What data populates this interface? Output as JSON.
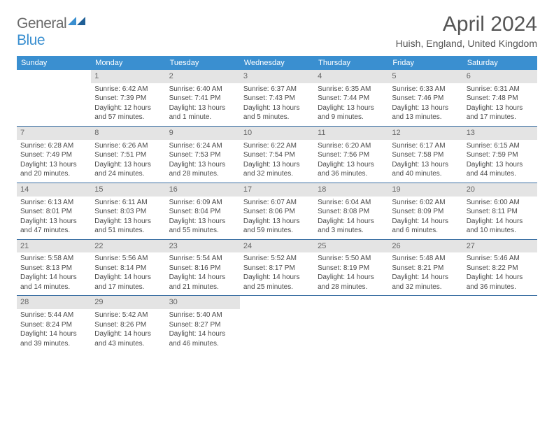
{
  "logo": {
    "general": "General",
    "blue": "Blue",
    "icon_color": "#3a8fd0"
  },
  "header": {
    "month_title": "April 2024",
    "location": "Huish, England, United Kingdom"
  },
  "colors": {
    "header_bg": "#3a8fd0",
    "header_text": "#ffffff",
    "daynum_bg": "#e4e4e4",
    "row_border": "#3a6fa3",
    "body_text": "#4a4a4a"
  },
  "days_of_week": [
    "Sunday",
    "Monday",
    "Tuesday",
    "Wednesday",
    "Thursday",
    "Friday",
    "Saturday"
  ],
  "weeks": [
    [
      {
        "empty": true
      },
      {
        "n": "1",
        "sunrise": "Sunrise: 6:42 AM",
        "sunset": "Sunset: 7:39 PM",
        "day1": "Daylight: 12 hours",
        "day2": "and 57 minutes."
      },
      {
        "n": "2",
        "sunrise": "Sunrise: 6:40 AM",
        "sunset": "Sunset: 7:41 PM",
        "day1": "Daylight: 13 hours",
        "day2": "and 1 minute."
      },
      {
        "n": "3",
        "sunrise": "Sunrise: 6:37 AM",
        "sunset": "Sunset: 7:43 PM",
        "day1": "Daylight: 13 hours",
        "day2": "and 5 minutes."
      },
      {
        "n": "4",
        "sunrise": "Sunrise: 6:35 AM",
        "sunset": "Sunset: 7:44 PM",
        "day1": "Daylight: 13 hours",
        "day2": "and 9 minutes."
      },
      {
        "n": "5",
        "sunrise": "Sunrise: 6:33 AM",
        "sunset": "Sunset: 7:46 PM",
        "day1": "Daylight: 13 hours",
        "day2": "and 13 minutes."
      },
      {
        "n": "6",
        "sunrise": "Sunrise: 6:31 AM",
        "sunset": "Sunset: 7:48 PM",
        "day1": "Daylight: 13 hours",
        "day2": "and 17 minutes."
      }
    ],
    [
      {
        "n": "7",
        "sunrise": "Sunrise: 6:28 AM",
        "sunset": "Sunset: 7:49 PM",
        "day1": "Daylight: 13 hours",
        "day2": "and 20 minutes."
      },
      {
        "n": "8",
        "sunrise": "Sunrise: 6:26 AM",
        "sunset": "Sunset: 7:51 PM",
        "day1": "Daylight: 13 hours",
        "day2": "and 24 minutes."
      },
      {
        "n": "9",
        "sunrise": "Sunrise: 6:24 AM",
        "sunset": "Sunset: 7:53 PM",
        "day1": "Daylight: 13 hours",
        "day2": "and 28 minutes."
      },
      {
        "n": "10",
        "sunrise": "Sunrise: 6:22 AM",
        "sunset": "Sunset: 7:54 PM",
        "day1": "Daylight: 13 hours",
        "day2": "and 32 minutes."
      },
      {
        "n": "11",
        "sunrise": "Sunrise: 6:20 AM",
        "sunset": "Sunset: 7:56 PM",
        "day1": "Daylight: 13 hours",
        "day2": "and 36 minutes."
      },
      {
        "n": "12",
        "sunrise": "Sunrise: 6:17 AM",
        "sunset": "Sunset: 7:58 PM",
        "day1": "Daylight: 13 hours",
        "day2": "and 40 minutes."
      },
      {
        "n": "13",
        "sunrise": "Sunrise: 6:15 AM",
        "sunset": "Sunset: 7:59 PM",
        "day1": "Daylight: 13 hours",
        "day2": "and 44 minutes."
      }
    ],
    [
      {
        "n": "14",
        "sunrise": "Sunrise: 6:13 AM",
        "sunset": "Sunset: 8:01 PM",
        "day1": "Daylight: 13 hours",
        "day2": "and 47 minutes."
      },
      {
        "n": "15",
        "sunrise": "Sunrise: 6:11 AM",
        "sunset": "Sunset: 8:03 PM",
        "day1": "Daylight: 13 hours",
        "day2": "and 51 minutes."
      },
      {
        "n": "16",
        "sunrise": "Sunrise: 6:09 AM",
        "sunset": "Sunset: 8:04 PM",
        "day1": "Daylight: 13 hours",
        "day2": "and 55 minutes."
      },
      {
        "n": "17",
        "sunrise": "Sunrise: 6:07 AM",
        "sunset": "Sunset: 8:06 PM",
        "day1": "Daylight: 13 hours",
        "day2": "and 59 minutes."
      },
      {
        "n": "18",
        "sunrise": "Sunrise: 6:04 AM",
        "sunset": "Sunset: 8:08 PM",
        "day1": "Daylight: 14 hours",
        "day2": "and 3 minutes."
      },
      {
        "n": "19",
        "sunrise": "Sunrise: 6:02 AM",
        "sunset": "Sunset: 8:09 PM",
        "day1": "Daylight: 14 hours",
        "day2": "and 6 minutes."
      },
      {
        "n": "20",
        "sunrise": "Sunrise: 6:00 AM",
        "sunset": "Sunset: 8:11 PM",
        "day1": "Daylight: 14 hours",
        "day2": "and 10 minutes."
      }
    ],
    [
      {
        "n": "21",
        "sunrise": "Sunrise: 5:58 AM",
        "sunset": "Sunset: 8:13 PM",
        "day1": "Daylight: 14 hours",
        "day2": "and 14 minutes."
      },
      {
        "n": "22",
        "sunrise": "Sunrise: 5:56 AM",
        "sunset": "Sunset: 8:14 PM",
        "day1": "Daylight: 14 hours",
        "day2": "and 17 minutes."
      },
      {
        "n": "23",
        "sunrise": "Sunrise: 5:54 AM",
        "sunset": "Sunset: 8:16 PM",
        "day1": "Daylight: 14 hours",
        "day2": "and 21 minutes."
      },
      {
        "n": "24",
        "sunrise": "Sunrise: 5:52 AM",
        "sunset": "Sunset: 8:17 PM",
        "day1": "Daylight: 14 hours",
        "day2": "and 25 minutes."
      },
      {
        "n": "25",
        "sunrise": "Sunrise: 5:50 AM",
        "sunset": "Sunset: 8:19 PM",
        "day1": "Daylight: 14 hours",
        "day2": "and 28 minutes."
      },
      {
        "n": "26",
        "sunrise": "Sunrise: 5:48 AM",
        "sunset": "Sunset: 8:21 PM",
        "day1": "Daylight: 14 hours",
        "day2": "and 32 minutes."
      },
      {
        "n": "27",
        "sunrise": "Sunrise: 5:46 AM",
        "sunset": "Sunset: 8:22 PM",
        "day1": "Daylight: 14 hours",
        "day2": "and 36 minutes."
      }
    ],
    [
      {
        "n": "28",
        "sunrise": "Sunrise: 5:44 AM",
        "sunset": "Sunset: 8:24 PM",
        "day1": "Daylight: 14 hours",
        "day2": "and 39 minutes."
      },
      {
        "n": "29",
        "sunrise": "Sunrise: 5:42 AM",
        "sunset": "Sunset: 8:26 PM",
        "day1": "Daylight: 14 hours",
        "day2": "and 43 minutes."
      },
      {
        "n": "30",
        "sunrise": "Sunrise: 5:40 AM",
        "sunset": "Sunset: 8:27 PM",
        "day1": "Daylight: 14 hours",
        "day2": "and 46 minutes."
      },
      {
        "empty": true
      },
      {
        "empty": true
      },
      {
        "empty": true
      },
      {
        "empty": true
      }
    ]
  ]
}
